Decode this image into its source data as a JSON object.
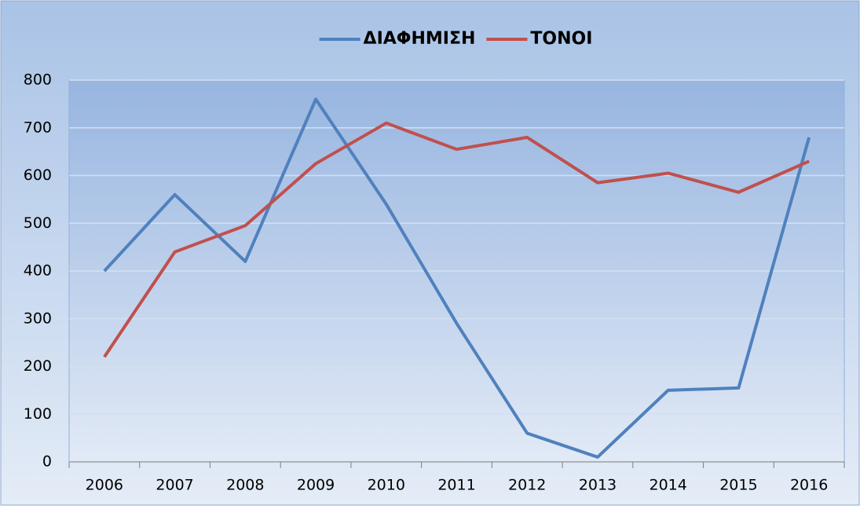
{
  "chart_data": {
    "type": "line",
    "categories": [
      "2006",
      "2007",
      "2008",
      "2009",
      "2010",
      "2011",
      "2012",
      "2013",
      "2014",
      "2015",
      "2016"
    ],
    "series": [
      {
        "name": "ΔΙΑΦΗΜΙΣΗ",
        "color": "#4f81bd",
        "values": [
          400,
          560,
          420,
          760,
          540,
          290,
          60,
          10,
          150,
          155,
          680
        ]
      },
      {
        "name": "ΤΟΝΟΙ",
        "color": "#c0504d",
        "values": [
          220,
          440,
          495,
          625,
          710,
          655,
          680,
          585,
          605,
          565,
          630
        ]
      }
    ],
    "ylim": [
      0,
      800
    ],
    "yticks": [
      0,
      100,
      200,
      300,
      400,
      500,
      600,
      700,
      800
    ],
    "grid": true,
    "legend": "top"
  }
}
